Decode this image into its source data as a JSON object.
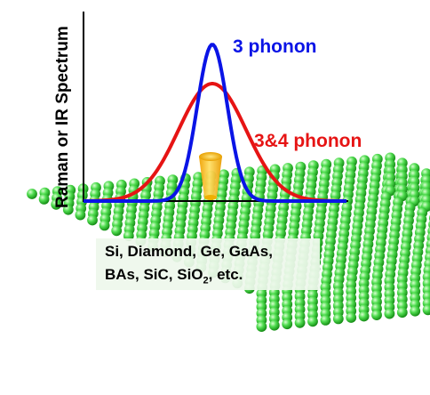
{
  "y_axis_label": "Raman or IR Spectrum",
  "peaks": [
    {
      "label": "3 phonon",
      "color": "#0a14e6",
      "height": 1.0
    },
    {
      "label": "3&4 phonon",
      "color": "#e61414",
      "height": 0.75
    }
  ],
  "materials": {
    "line1": "Si, Diamond, Ge, GaAs,",
    "line2_prefix": "BAs, SiC, SiO",
    "line2_sub": "2",
    "line2_suffix": ", etc."
  },
  "colors": {
    "atom": "#3ed13e",
    "atom_highlight": "#b8f5b0",
    "atom_shadow": "#168a16",
    "laser": "#f5b800"
  },
  "icons": [
    "crystal-lattice-icon",
    "laser-beam-icon"
  ]
}
